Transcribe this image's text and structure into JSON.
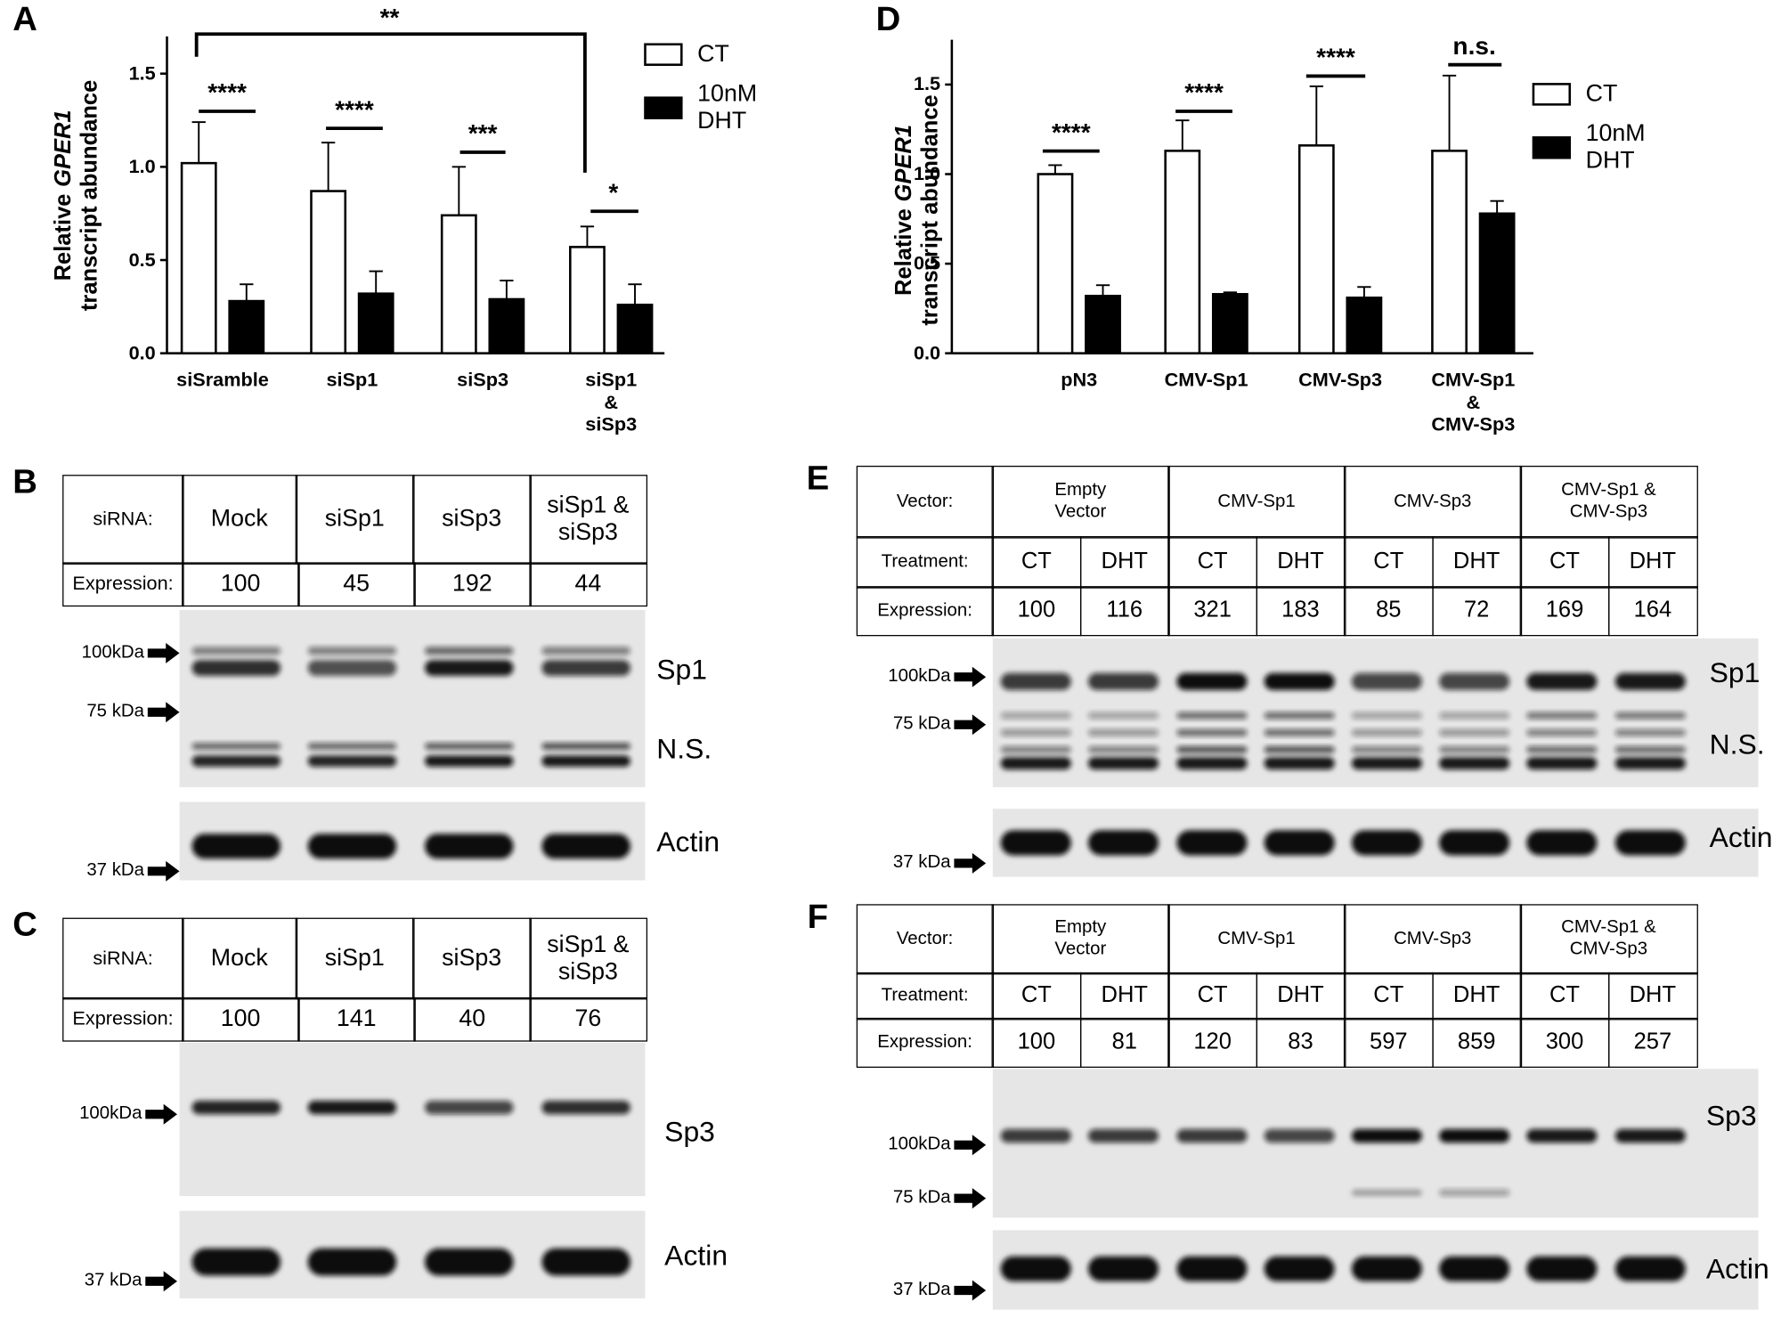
{
  "panel_labels": [
    "A",
    "D",
    "B",
    "C",
    "E",
    "F"
  ],
  "chart_data": [
    {
      "type": "bar",
      "ylabel": "Relative",
      "ylabel_gene": "GPER1",
      "ylabel_line2": "transcript abundance",
      "categories": [
        "siSramble",
        "siSp1",
        "siSp3",
        "siSp1\n&\nsiSp3"
      ],
      "series": [
        {
          "name": "CT",
          "color": "#ffffff",
          "values": [
            1.02,
            0.87,
            0.74,
            0.57
          ],
          "errors": [
            0.22,
            0.26,
            0.26,
            0.11
          ]
        },
        {
          "name": "10nM DHT",
          "color": "#000000",
          "values": [
            0.28,
            0.32,
            0.29,
            0.26
          ],
          "errors": [
            0.09,
            0.12,
            0.1,
            0.11
          ]
        }
      ],
      "ylim": [
        0,
        1.7
      ],
      "yticks": [
        {
          "value": 0,
          "label": "0.0"
        },
        {
          "value": 0.5,
          "label": "0.5"
        },
        {
          "value": 1,
          "label": "1.0"
        },
        {
          "value": 1.5,
          "label": "1.5"
        }
      ],
      "annotations": [
        "****",
        "****",
        "***",
        "*",
        "**"
      ]
    },
    {
      "type": "bar",
      "ylabel": "Relative",
      "ylabel_gene": "GPER1",
      "ylabel_line2": "transcript abundance",
      "categories": [
        "pN3",
        "CMV-Sp1",
        "CMV-Sp3",
        "CMV-Sp1\n&\nCMV-Sp3"
      ],
      "series": [
        {
          "name": "CT",
          "color": "#ffffff",
          "values": [
            1.0,
            1.13,
            1.16,
            1.13
          ],
          "errors": [
            0.05,
            0.17,
            0.33,
            0.42
          ]
        },
        {
          "name": "10nM DHT",
          "color": "#000000",
          "values": [
            0.32,
            0.33,
            0.31,
            0.78
          ],
          "errors": [
            0.06,
            0.01,
            0.06,
            0.07
          ]
        }
      ],
      "ylim": [
        0,
        1.75
      ],
      "yticks": [
        {
          "value": 0,
          "label": "0.0"
        },
        {
          "value": 0.5,
          "label": "0.5"
        },
        {
          "value": 1,
          "label": "1.0"
        },
        {
          "value": 1.5,
          "label": "1.5"
        }
      ],
      "annotations": [
        "****",
        "****",
        "****",
        "n.s."
      ]
    }
  ],
  "tables": [
    {
      "header_label": "siRNA:",
      "columns": [
        "Mock",
        "siSp1",
        "siSp3",
        "siSp1 &\nsiSp3"
      ],
      "row_label": "Expression:",
      "values": [
        100,
        45,
        192,
        44
      ]
    },
    {
      "header_label": "siRNA:",
      "columns": [
        "Mock",
        "siSp1",
        "siSp3",
        "siSp1 &\nsiSp3"
      ],
      "row_label": "Expression:",
      "values": [
        100,
        141,
        40,
        76
      ]
    },
    {
      "header_label": "Vector:",
      "columns": [
        "Empty\nVector",
        "CMV-Sp1",
        "CMV-Sp3",
        "CMV-Sp1 &\nCMV-Sp3"
      ],
      "treatment_label": "Treatment:",
      "treatments": [
        "CT",
        "DHT",
        "CT",
        "DHT",
        "CT",
        "DHT",
        "CT",
        "DHT"
      ],
      "row_label": "Expression:",
      "values": [
        100,
        116,
        321,
        183,
        85,
        72,
        169,
        164
      ]
    },
    {
      "header_label": "Vector:",
      "columns": [
        "Empty\nVector",
        "CMV-Sp1",
        "CMV-Sp3",
        "CMV-Sp1 &\nCMV-Sp3"
      ],
      "treatment_label": "Treatment:",
      "treatments": [
        "CT",
        "DHT",
        "CT",
        "DHT",
        "CT",
        "DHT",
        "CT",
        "DHT"
      ],
      "row_label": "Expression:",
      "values": [
        100,
        81,
        120,
        83,
        597,
        859,
        300,
        257
      ]
    }
  ],
  "blots": [
    {
      "markers": [
        "100kDa",
        "75 kDa",
        "37 kDa"
      ],
      "labels": [
        "Sp1",
        "N.S.",
        "Actin"
      ]
    },
    {
      "markers": [
        "100kDa",
        "37 kDa"
      ],
      "labels": [
        "Sp3",
        "Actin"
      ]
    },
    {
      "markers": [
        "100kDa",
        "75 kDa",
        "37 kDa"
      ],
      "labels": [
        "Sp1",
        "N.S.",
        "Actin"
      ]
    },
    {
      "markers": [
        "100kDa",
        "75 kDa",
        "37 kDa"
      ],
      "labels": [
        "Sp3",
        "Actin"
      ]
    }
  ]
}
